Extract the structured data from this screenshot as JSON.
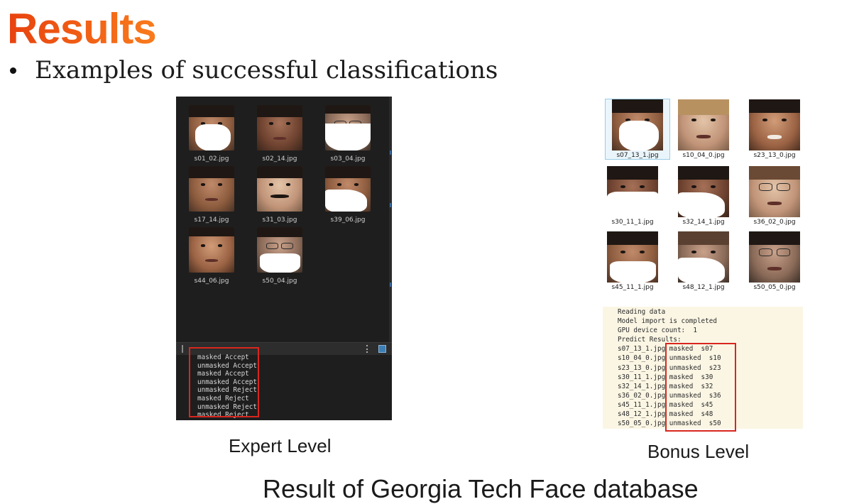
{
  "slide": {
    "title": "Results",
    "bullet": "Examples of successful classifications",
    "footer": "Result of Georgia Tech Face database"
  },
  "expert": {
    "caption": "Expert Level",
    "files": [
      "s01_02.jpg",
      "s02_14.jpg",
      "s03_04.jpg",
      "s17_14.jpg",
      "s31_03.jpg",
      "s39_06.jpg",
      "s44_06.jpg",
      "s50_04.jpg"
    ],
    "log": [
      "masked Accept",
      "unmasked Accept",
      "masked Accept",
      "unmasked Accept",
      "unmasked Reject",
      "masked Reject",
      "unmasked Reject",
      "masked Reject"
    ]
  },
  "bonus": {
    "caption": "Bonus Level",
    "files": [
      "s07_13_1.jpg",
      "s10_04_0.jpg",
      "s23_13_0.jpg",
      "s30_11_1.jpg",
      "s32_14_1.jpg",
      "s36_02_0.jpg",
      "s45_11_1.jpg",
      "s48_12_1.jpg",
      "s50_05_0.jpg"
    ],
    "log_header": [
      "Reading data",
      "Model import is completed",
      "GPU device count:  1",
      "Predict Results:"
    ],
    "results": [
      {
        "file": "s07_13_1.jpg",
        "label": "masked  s07"
      },
      {
        "file": "s10_04_0.jpg",
        "label": "unmasked  s10"
      },
      {
        "file": "s23_13_0.jpg",
        "label": "unmasked  s23"
      },
      {
        "file": "s30_11_1.jpg",
        "label": "masked  s30"
      },
      {
        "file": "s32_14_1.jpg",
        "label": "masked  s32"
      },
      {
        "file": "s36_02_0.jpg",
        "label": "unmasked  s36"
      },
      {
        "file": "s45_11_1.jpg",
        "label": "masked  s45"
      },
      {
        "file": "s48_12_1.jpg",
        "label": "masked  s48"
      },
      {
        "file": "s50_05_0.jpg",
        "label": "unmasked  s50"
      }
    ]
  },
  "colors": {
    "title_start": "#e8420f",
    "title_end": "#f97b1c",
    "highlight_box": "#d8261e",
    "expert_bg": "#1e1e1e",
    "bonus_console_bg": "#fbf6e4"
  }
}
